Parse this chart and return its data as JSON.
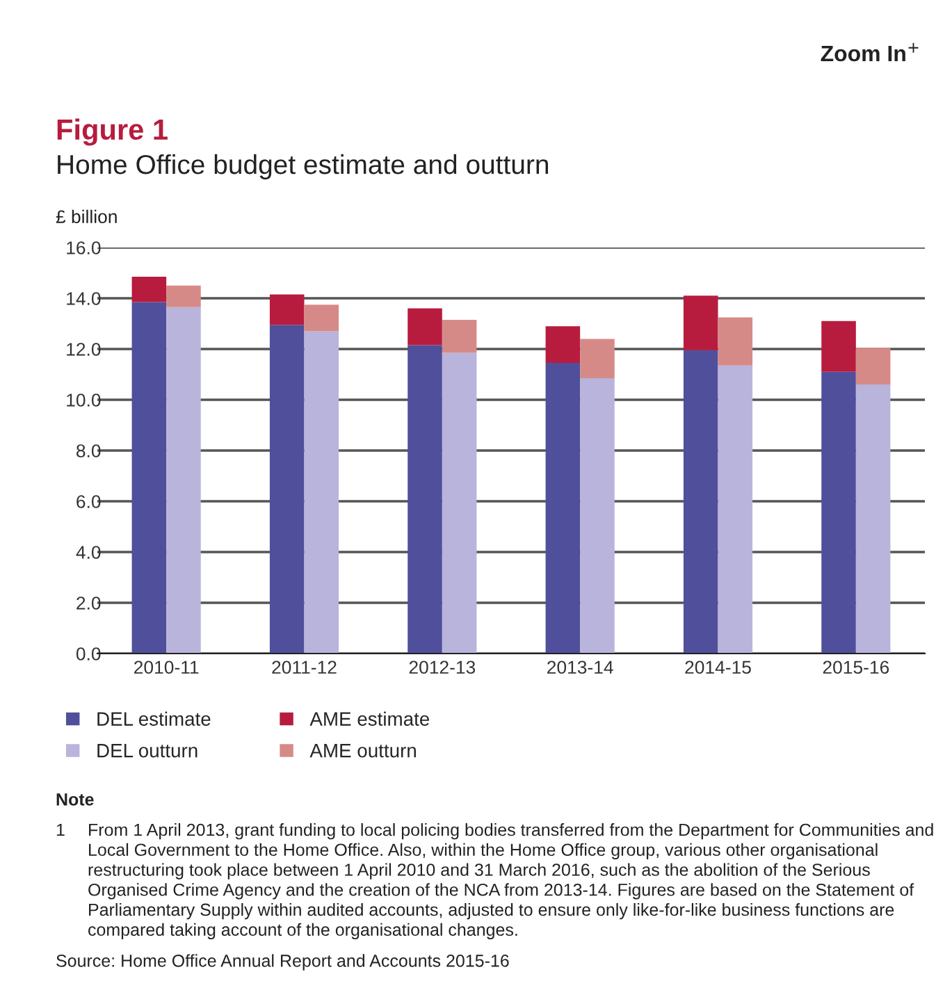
{
  "chart_data": {
    "type": "bar",
    "title": "Figure 1",
    "subtitle": "Home Office budget estimate and outturn",
    "ylabel": "£ billion",
    "categories": [
      "2010-11",
      null,
      null,
      null,
      "2011-12",
      null,
      null,
      null,
      "2012-13",
      null,
      null,
      null,
      "2013-14",
      null,
      null,
      null,
      "2014-15",
      null,
      null,
      null,
      "2015-16",
      null,
      null,
      null
    ],
    "stacked": true,
    "series": [
      {
        "name": "DEL estimate",
        "color": "#4f4f9b",
        "values": [
          13.85,
          null,
          null,
          null,
          12.95,
          null,
          null,
          null,
          12.15,
          null,
          null,
          null,
          11.45,
          null,
          null,
          null,
          11.95,
          null,
          null,
          null,
          11.1,
          null,
          null,
          null
        ]
      },
      {
        "name": "DEL outturn",
        "color": "#b8b4dc",
        "values": [
          null,
          13.65,
          null,
          null,
          null,
          12.7,
          null,
          null,
          null,
          11.85,
          null,
          null,
          null,
          10.85,
          null,
          null,
          null,
          11.35,
          null,
          null,
          null,
          10.6,
          null,
          null
        ]
      },
      {
        "name": "AME estimate",
        "color": "#b71c3e",
        "values": [
          1.0,
          null,
          null,
          null,
          1.2,
          null,
          null,
          null,
          1.45,
          null,
          null,
          null,
          1.45,
          null,
          null,
          null,
          2.15,
          null,
          null,
          null,
          2.0,
          null,
          null,
          null
        ]
      },
      {
        "name": "AME outturn",
        "color": "#d68a88",
        "values": [
          null,
          0.85,
          null,
          null,
          null,
          1.05,
          null,
          null,
          null,
          1.3,
          null,
          null,
          null,
          1.55,
          null,
          null,
          null,
          1.9,
          null,
          null,
          null,
          1.45,
          null,
          null
        ]
      }
    ],
    "ylim": [
      0,
      16
    ],
    "yticks": [
      {
        "value": 0,
        "label": "0.0"
      },
      {
        "value": 2,
        "label": "2.0"
      },
      {
        "value": 4,
        "label": "4.0"
      },
      {
        "value": 6,
        "label": "6.0"
      },
      {
        "value": 8,
        "label": "8.0"
      },
      {
        "value": 10,
        "label": "10.0"
      },
      {
        "value": 12,
        "label": "12.0"
      },
      {
        "value": 14,
        "label": "14.0"
      },
      {
        "value": 16,
        "label": "16.0"
      }
    ],
    "grid": "y",
    "legend": "bottom",
    "annotations": [
      "Zoom In$^{+}$",
      "Note",
      "1",
      "From 1 April 2013, grant funding to local policing bodies transferred from the Department for Communities and Local Government to the Home Office. Also, within the Home Office group, various other organisational restructuring took place between 1 April 2010 and 31 March 2016, such as the abolition of the Serious Organised Crime Agency and the creation of the NCA from 2013-14. Figures are based on the Statement of Parliamentary Supply within audited accounts, adjusted to ensure only like-for-like business functions are compared taking account of the organisational changes.",
      "Source: Home Office Annual Report and Accounts 2015-16"
    ]
  }
}
